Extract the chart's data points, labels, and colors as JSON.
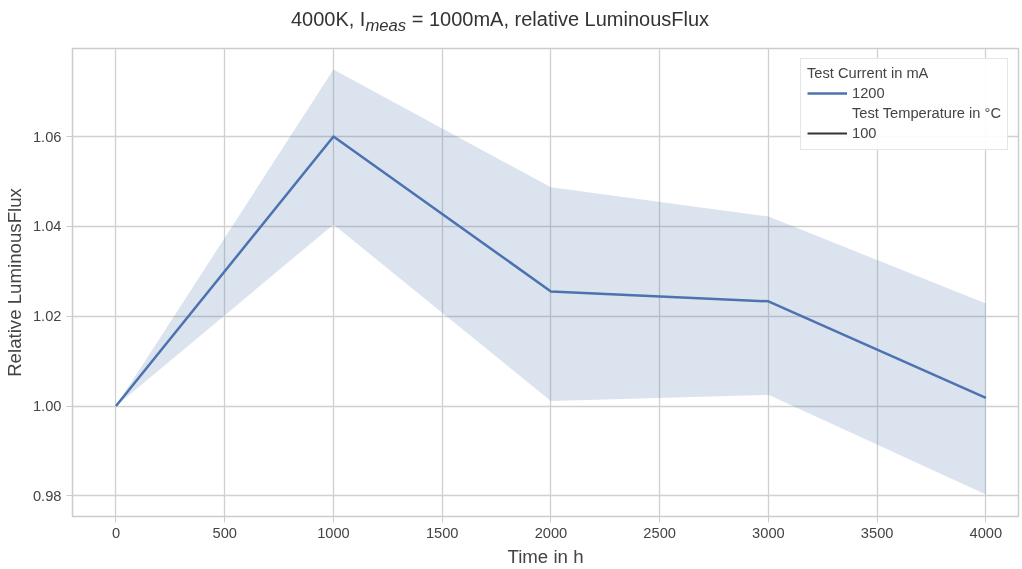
{
  "chart_data": {
    "type": "line",
    "title": "4000K, I$_{meas}$ = 1000mA, relative LuminousFlux",
    "xlabel": "Time in h",
    "ylabel": "Relative LuminousFlux",
    "legend_title": "Test Current in mA",
    "x": [
      0,
      1000,
      2000,
      3000,
      4000
    ],
    "series": [
      {
        "name": "1200",
        "color": "#4c72b0",
        "values": [
          1.0,
          1.06,
          1.0255,
          1.0233,
          1.0018
        ],
        "lower": [
          1.0,
          1.0404,
          1.0011,
          1.0025,
          0.9803
        ],
        "upper": [
          1.0,
          1.0749,
          1.0487,
          1.0422,
          1.0228
        ]
      }
    ],
    "annotations": [
      "Test Temperature in °C",
      "100"
    ],
    "xlim": [
      -200,
      4150
    ],
    "ylim": [
      0.9754,
      1.0796
    ],
    "xticks": [
      0,
      500,
      1000,
      1500,
      2000,
      2500,
      3000,
      3500,
      4000
    ],
    "yticks": [
      0.98,
      {
        "value": 1.0,
        "label": "1.00"
      },
      1.02,
      1.04,
      1.06
    ],
    "grid": true,
    "legend": "top right",
    "line_style": "solid",
    "marker": "none"
  }
}
